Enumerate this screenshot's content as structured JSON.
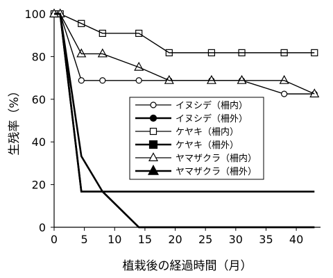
{
  "chart_data": {
    "type": "line",
    "xlabel": "植栽後の経過時間（月）",
    "ylabel": "生残率（%）",
    "xlim": [
      0,
      44
    ],
    "ylim": [
      0,
      100
    ],
    "xticks": [
      0,
      5,
      10,
      15,
      20,
      25,
      30,
      35,
      40
    ],
    "yticks": [
      0,
      20,
      40,
      60,
      80,
      100
    ],
    "grid": false,
    "legend_position": "center-right",
    "series": [
      {
        "name": "イヌシデ（柵内）",
        "marker": "circle",
        "filled": false,
        "x": [
          0,
          1,
          4.5,
          8,
          14,
          19,
          26,
          31,
          38,
          43
        ],
        "y": [
          100,
          100,
          68.8,
          68.8,
          68.8,
          68.8,
          68.8,
          68.8,
          62.5,
          62.5
        ]
      },
      {
        "name": "イヌシデ（柵外）",
        "marker": "circle",
        "filled": true,
        "x": [
          0,
          1,
          4.5,
          8,
          14,
          19,
          26,
          31,
          38,
          43
        ],
        "y": [
          100,
          100,
          33.3,
          16.7,
          16.7,
          16.7,
          16.7,
          16.7,
          16.7,
          16.7
        ]
      },
      {
        "name": "ケヤキ（柵内）",
        "marker": "square",
        "filled": false,
        "x": [
          0,
          1,
          4.5,
          8,
          14,
          19,
          26,
          31,
          38,
          43
        ],
        "y": [
          100,
          100,
          95.5,
          90.9,
          90.9,
          81.8,
          81.8,
          81.8,
          81.8,
          81.8
        ]
      },
      {
        "name": "ケヤキ（柵外）",
        "marker": "square",
        "filled": true,
        "x": [
          0,
          1,
          4.5,
          8,
          14,
          19,
          26,
          31,
          38,
          43
        ],
        "y": [
          100,
          100,
          16.7,
          16.7,
          0,
          0,
          0,
          0,
          0,
          0
        ]
      },
      {
        "name": "ヤマザクラ（柵内）",
        "marker": "triangle",
        "filled": false,
        "x": [
          0,
          1,
          4.5,
          8,
          14,
          19,
          26,
          31,
          38,
          43
        ],
        "y": [
          100,
          100,
          81.3,
          81.3,
          75,
          68.8,
          68.8,
          68.8,
          68.8,
          62.5
        ]
      },
      {
        "name": "ヤマザクラ（柵外）",
        "marker": "triangle",
        "filled": true,
        "x": [
          0,
          1,
          4.5,
          8,
          14,
          19,
          26,
          31,
          38,
          43
        ],
        "y": [
          100,
          100,
          16.7,
          16.7,
          0,
          0,
          0,
          0,
          0,
          0
        ]
      }
    ]
  }
}
